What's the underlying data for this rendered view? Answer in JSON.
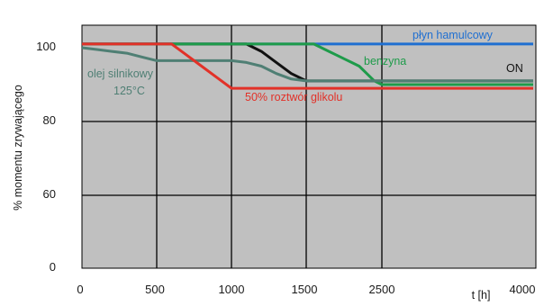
{
  "chart_data": {
    "type": "line",
    "xlabel": "t [h]",
    "ylabel": "% momentu zrywającego",
    "x_ticks": [
      "0",
      "500",
      "1000",
      "1500",
      "2500",
      "4000"
    ],
    "y_ticks": [
      "0",
      "60",
      "80",
      "100"
    ],
    "y_tick_values": [
      0,
      60,
      80,
      100
    ],
    "grid": true,
    "background": "#c0c0c0",
    "series": [
      {
        "name": "płyn hamulcowy",
        "color": "#1f6fd1",
        "x": [
          0,
          4000
        ],
        "y": [
          101,
          101
        ]
      },
      {
        "name": "ON",
        "color": "#111111",
        "x": [
          0,
          1100,
          1200,
          1300,
          1400,
          1500,
          2500,
          4000
        ],
        "y": [
          101,
          101,
          99,
          96,
          93,
          91,
          91,
          91
        ]
      },
      {
        "name": "benzyna",
        "color": "#1e9b4a",
        "x": [
          0,
          1600,
          1700,
          1800,
          1900,
          2000,
          2100,
          2200,
          2300,
          2400,
          2500,
          4000
        ],
        "y": [
          101,
          101,
          100,
          99,
          98,
          97,
          96,
          95,
          93,
          91,
          90,
          90
        ]
      },
      {
        "name": "olej silnikowy 125°C",
        "color": "#4f7f74",
        "x": [
          0,
          100,
          200,
          300,
          400,
          500,
          1000,
          1100,
          1200,
          1300,
          1400,
          1500,
          4000
        ],
        "y": [
          100,
          99.5,
          99,
          98.5,
          97.5,
          96.5,
          96.5,
          96,
          95,
          93,
          91.5,
          91,
          91
        ]
      },
      {
        "name": "50% roztwór glikolu",
        "color": "#e23128",
        "x": [
          0,
          600,
          700,
          800,
          900,
          1000,
          4000
        ],
        "y": [
          101,
          101,
          98,
          95,
          92,
          89,
          89
        ]
      }
    ],
    "annotations": [
      {
        "text": "płyn hamulcowy",
        "series": "płyn hamulcowy"
      },
      {
        "text": "ON",
        "series": "ON"
      },
      {
        "text": "benzyna",
        "series": "benzyna"
      },
      {
        "text": "olej silnikowy",
        "series": "olej silnikowy 125°C"
      },
      {
        "text": "125°C",
        "series": "olej silnikowy 125°C"
      },
      {
        "text": "50% roztwór glikolu",
        "series": "50% roztwór glikolu"
      }
    ]
  }
}
